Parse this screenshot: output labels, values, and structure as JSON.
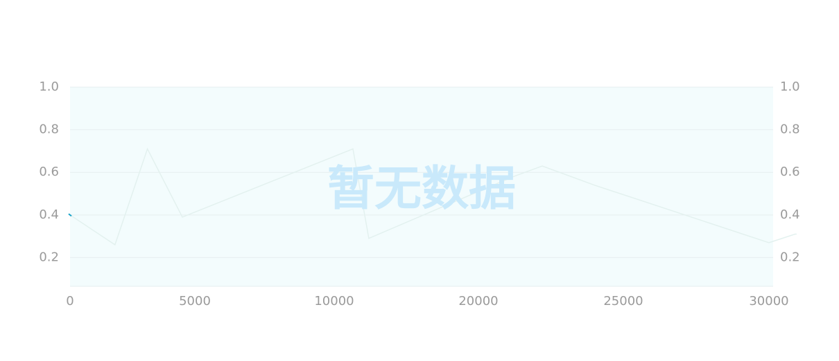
{
  "chart_data": {
    "type": "line",
    "title": "",
    "xlabel": "",
    "ylabel": "",
    "x_tick_labels": [
      "0",
      "5000",
      "10000",
      "20000",
      "25000",
      "30000"
    ],
    "y_tick_labels_left": [
      "1.0",
      "0.8",
      "0.6",
      "0.4",
      "0.2"
    ],
    "y_tick_labels_right": [
      "1.0",
      "0.8",
      "0.6",
      "0.4",
      "0.2"
    ],
    "ylim": [
      0.065,
      1.0
    ],
    "grid": true,
    "empty_message": "暂无数据",
    "series": [
      {
        "x": [
          0,
          1800,
          3100,
          4500,
          11300,
          12400,
          21200,
          22200,
          24000,
          30000,
          30900,
          30950
        ],
        "values": [
          0.4,
          0.26,
          0.71,
          0.39,
          0.71,
          0.29,
          0.58,
          0.63,
          0.54,
          0.27,
          0.31,
          0.31
        ]
      }
    ],
    "colors": {
      "plot_background": "#f3fcfd",
      "grid": "#e6eef0",
      "line": "#e3f1ef",
      "line_accent": "#1aa3c9",
      "tick_text": "#9a9a9a",
      "empty_text": "#c9e9fb"
    }
  }
}
